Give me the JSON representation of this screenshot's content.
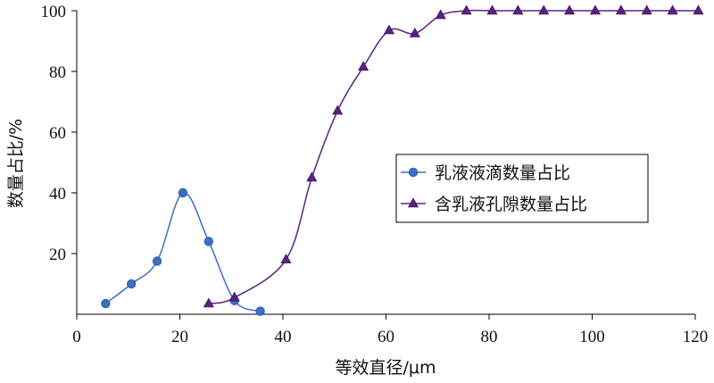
{
  "chart_data": {
    "type": "line",
    "title": "",
    "xlabel": "等效直径/μm",
    "ylabel": "数量占比/%",
    "xlim": [
      0,
      120
    ],
    "ylim": [
      0,
      100
    ],
    "x_ticks": [
      0,
      20,
      40,
      60,
      80,
      100,
      120
    ],
    "y_ticks": [
      20,
      40,
      60,
      80,
      100
    ],
    "x_tick_labels": [
      "0",
      "20",
      "40",
      "60",
      "80",
      "100",
      "120"
    ],
    "y_tick_labels": [
      "20",
      "40",
      "60",
      "80",
      "100"
    ],
    "grid": false,
    "legend_position": "right-middle",
    "series": [
      {
        "name": "乳液液滴数量占比",
        "color": "#3a6fc4",
        "marker": "circle",
        "x": [
          5.6,
          10.6,
          15.6,
          20.6,
          25.6,
          30.6,
          35.6
        ],
        "y": [
          3.5,
          10,
          17.5,
          40,
          24,
          4.5,
          1
        ]
      },
      {
        "name": "含乳液孔隙数量占比",
        "color": "#5a2380",
        "marker": "triangle",
        "x": [
          25.6,
          30.6,
          40.6,
          45.6,
          50.6,
          55.6,
          60.6,
          65.6,
          70.6,
          75.6,
          80.6,
          85.6,
          90.6,
          95.6,
          100.6,
          105.6,
          110.6,
          115.6,
          120.6
        ],
        "y": [
          3.5,
          5.5,
          18,
          45,
          67,
          81.5,
          93.5,
          92.5,
          98.5,
          100,
          100,
          100,
          100,
          100,
          100,
          100,
          100,
          100,
          100
        ]
      }
    ]
  }
}
